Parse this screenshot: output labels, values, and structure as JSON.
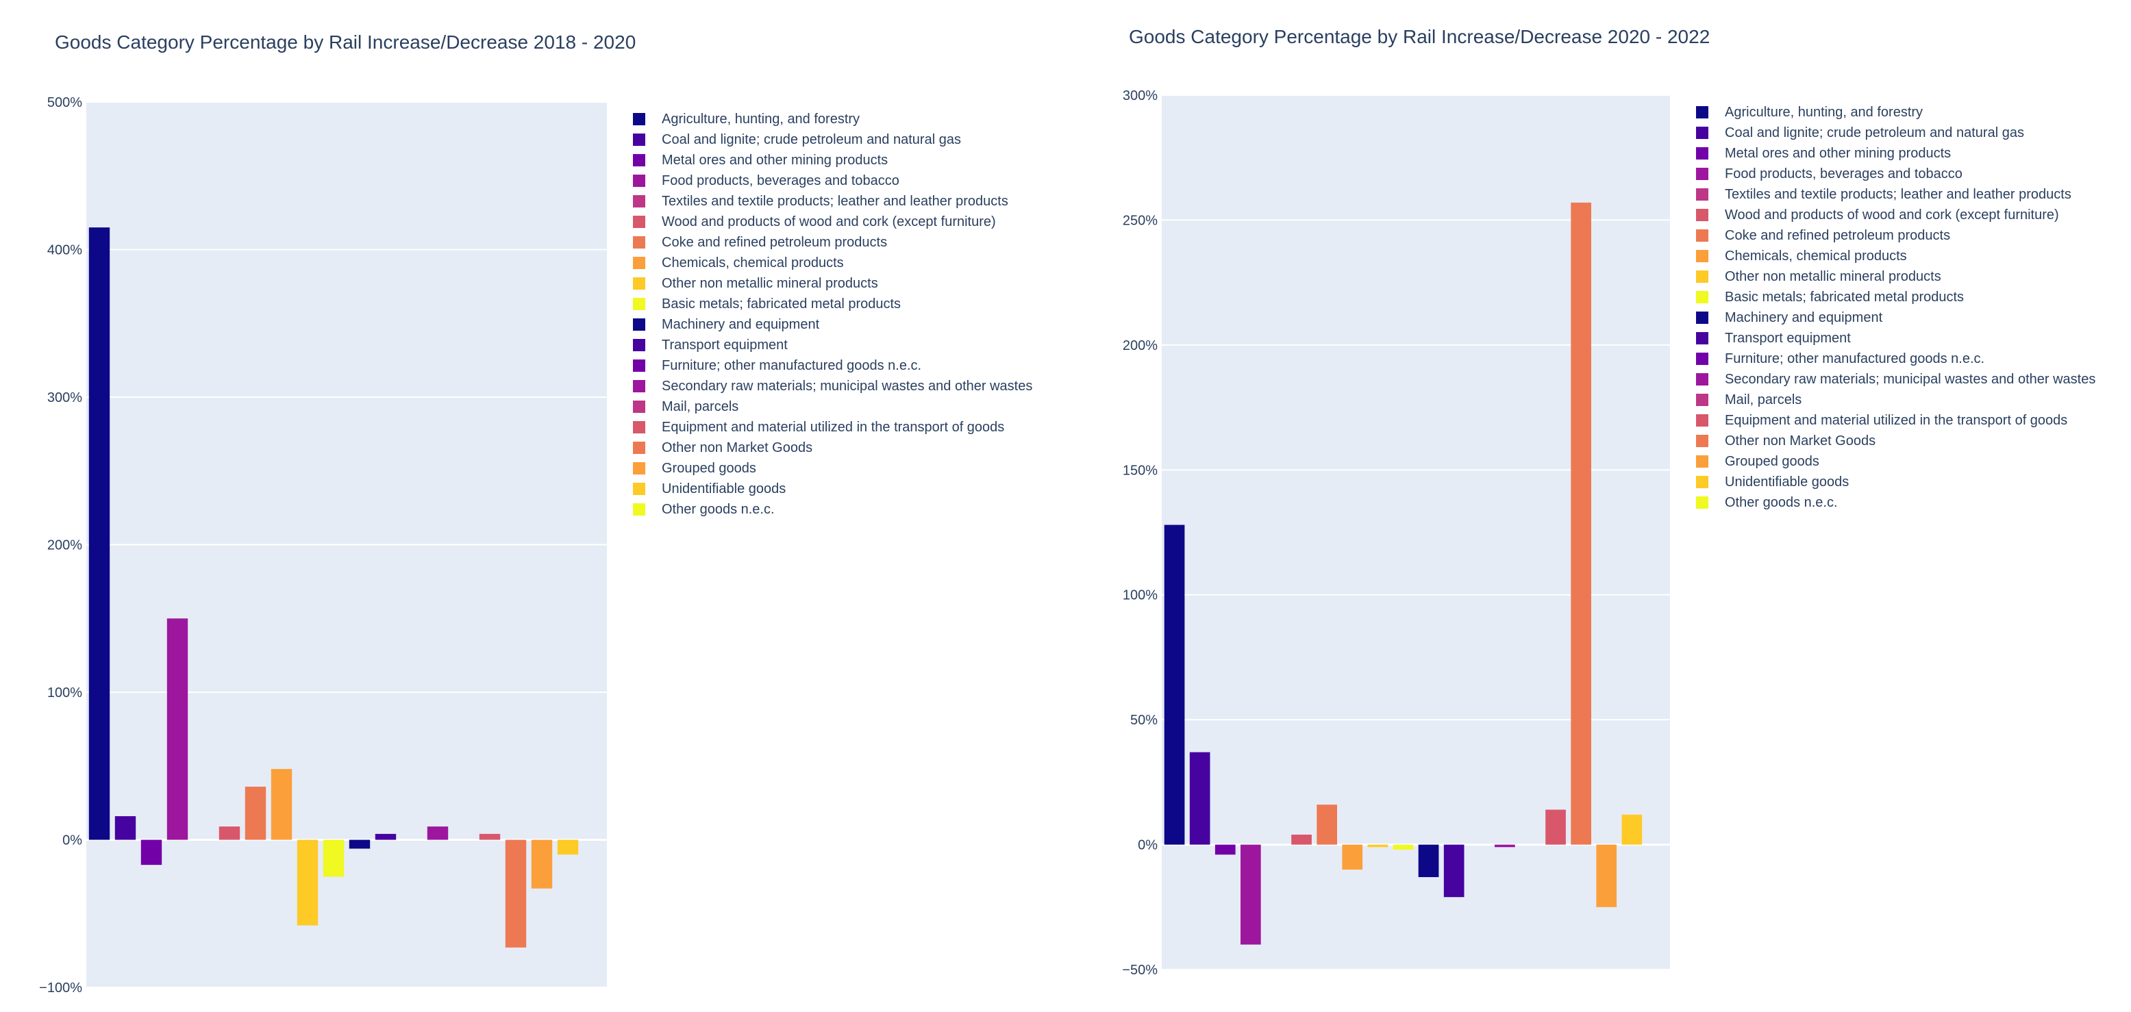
{
  "chart_data": [
    {
      "type": "bar",
      "title": "Goods Category Percentage by Rail Increase/Decrease 2018 - 2020",
      "ylim": [
        -100,
        500
      ],
      "yticks": [
        -100,
        0,
        100,
        200,
        300,
        400,
        500
      ],
      "ytick_labels": [
        "−100%",
        "0%",
        "100%",
        "200%",
        "300%",
        "400%",
        "500%"
      ],
      "grid": true,
      "legend_position": "right",
      "categories": [
        "Agriculture, hunting, and forestry",
        "Coal and lignite; crude petroleum and natural gas",
        "Metal ores and other mining products",
        "Food products, beverages and tobacco",
        "Textiles and textile products; leather and leather products",
        "Wood and products of wood and cork (except furniture)",
        "Coke and refined petroleum products",
        "Chemicals, chemical products",
        "Other non metallic mineral products",
        "Basic metals; fabricated metal products",
        "Machinery and equipment",
        "Transport equipment",
        "Furniture; other manufactured goods n.e.c.",
        "Secondary raw materials; municipal wastes and other wastes",
        "Mail, parcels",
        "Equipment and material utilized in the transport of goods",
        "Other non Market Goods",
        "Grouped goods",
        "Unidentifiable goods",
        "Other goods n.e.c."
      ],
      "values": [
        415,
        16,
        -17,
        150,
        0,
        9,
        36,
        48,
        -58,
        -25,
        -6,
        4,
        0,
        9,
        0,
        4,
        -73,
        -33,
        -10,
        0
      ],
      "colors": [
        "#0d0887",
        "#46039f",
        "#7201a8",
        "#9c179e",
        "#bd3786",
        "#d8576b",
        "#ed7953",
        "#fb9f3a",
        "#fdca26",
        "#f0f921",
        "#0d0887",
        "#46039f",
        "#7201a8",
        "#9c179e",
        "#bd3786",
        "#d8576b",
        "#ed7953",
        "#fb9f3a",
        "#fdca26",
        "#f0f921"
      ]
    },
    {
      "type": "bar",
      "title": "Goods Category Percentage by Rail Increase/Decrease 2020 - 2022",
      "ylim": [
        -50,
        300
      ],
      "yticks": [
        -50,
        0,
        50,
        100,
        150,
        200,
        250,
        300
      ],
      "ytick_labels": [
        "−50%",
        "0%",
        "50%",
        "100%",
        "150%",
        "200%",
        "250%",
        "300%"
      ],
      "grid": true,
      "legend_position": "right",
      "categories": [
        "Agriculture, hunting, and forestry",
        "Coal and lignite; crude petroleum and natural gas",
        "Metal ores and other mining products",
        "Food products, beverages and tobacco",
        "Textiles and textile products; leather and leather products",
        "Wood and products of wood and cork (except furniture)",
        "Coke and refined petroleum products",
        "Chemicals, chemical products",
        "Other non metallic mineral products",
        "Basic metals; fabricated metal products",
        "Machinery and equipment",
        "Transport equipment",
        "Furniture; other manufactured goods n.e.c.",
        "Secondary raw materials; municipal wastes and other wastes",
        "Mail, parcels",
        "Equipment and material utilized in the transport of goods",
        "Other non Market Goods",
        "Grouped goods",
        "Unidentifiable goods",
        "Other goods n.e.c."
      ],
      "values": [
        128,
        37,
        -4,
        -40,
        0,
        4,
        16,
        -10,
        -1,
        -2,
        -13,
        -21,
        0,
        -1,
        0,
        14,
        257,
        -25,
        12,
        0
      ],
      "colors": [
        "#0d0887",
        "#46039f",
        "#7201a8",
        "#9c179e",
        "#bd3786",
        "#d8576b",
        "#ed7953",
        "#fb9f3a",
        "#fdca26",
        "#f0f921",
        "#0d0887",
        "#46039f",
        "#7201a8",
        "#9c179e",
        "#bd3786",
        "#d8576b",
        "#ed7953",
        "#fb9f3a",
        "#fdca26",
        "#f0f921"
      ]
    }
  ]
}
